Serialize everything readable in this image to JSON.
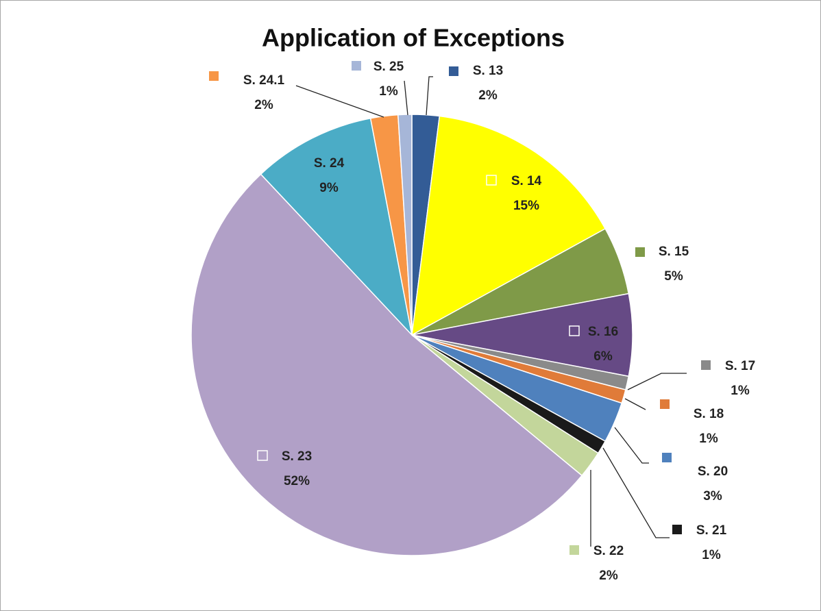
{
  "chart_data": {
    "type": "pie",
    "title": "Application of Exceptions",
    "categories": [
      "S. 13",
      "S. 14",
      "S. 15",
      "S. 16",
      "S. 17",
      "S. 18",
      "S. 20",
      "S. 21",
      "S. 22",
      "S. 23",
      "S. 24",
      "S. 24.1",
      "S. 25"
    ],
    "values": [
      2,
      15,
      5,
      6,
      1,
      1,
      3,
      1,
      2,
      52,
      9,
      2,
      1
    ],
    "value_labels": [
      "2%",
      "15%",
      "5%",
      "6%",
      "1%",
      "1%",
      "3%",
      "1%",
      "2%",
      "52%",
      "9%",
      "2%",
      "1%"
    ],
    "colors": [
      "#335c96",
      "#ffff00",
      "#7f9a48",
      "#664a85",
      "#8a8a8a",
      "#e07b39",
      "#4f81bd",
      "#1a1a1a",
      "#c3d69b",
      "#b1a0c7",
      "#4bacc6",
      "#f79646",
      "#a6b6d8"
    ]
  }
}
